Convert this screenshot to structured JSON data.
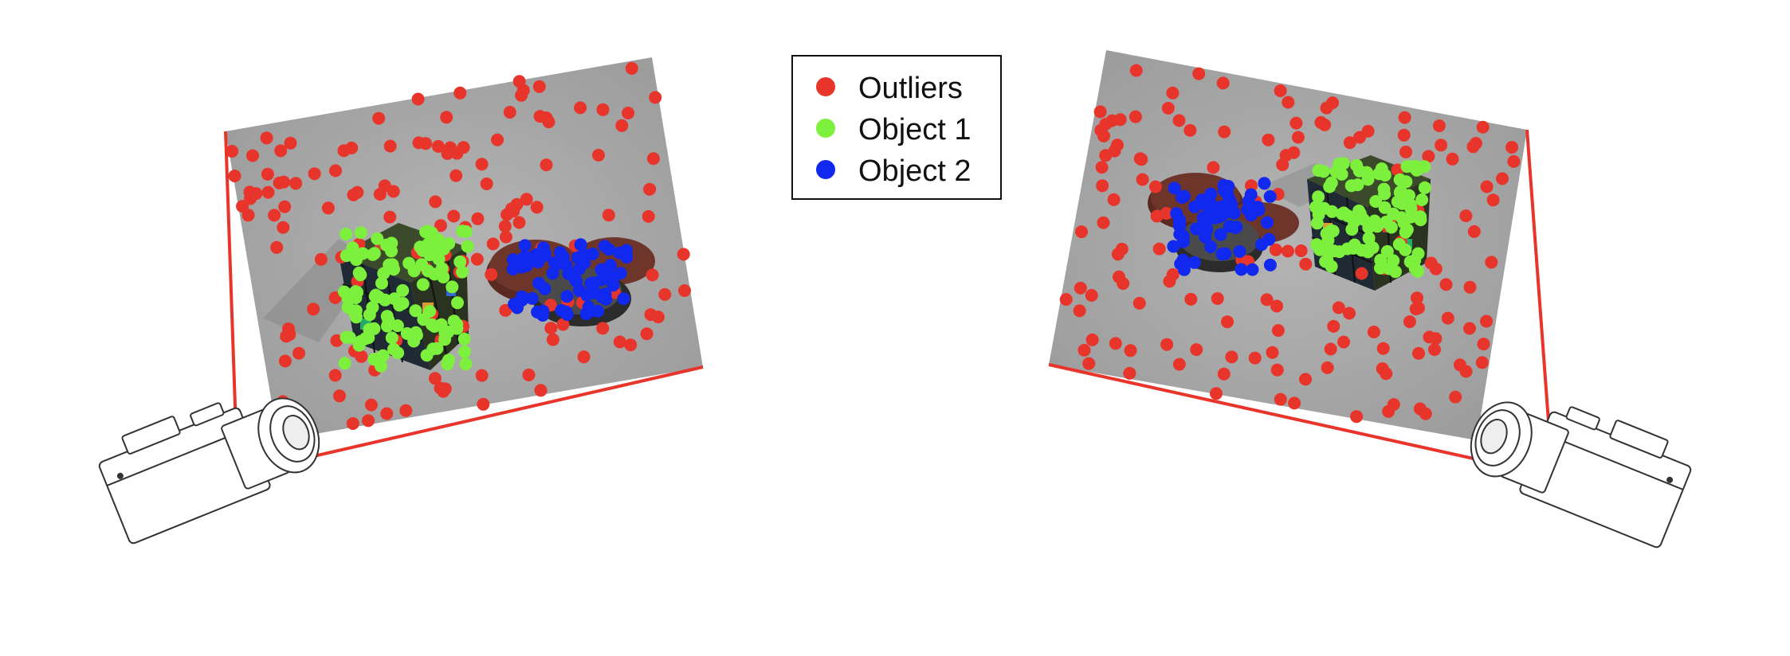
{
  "legend": {
    "items": [
      {
        "label": "Outliers",
        "color": "#e8352b"
      },
      {
        "label": "Object 1",
        "color": "#7cf03c"
      },
      {
        "label": "Object 2",
        "color": "#1128ee"
      }
    ]
  },
  "colors": {
    "outlier": "#e8352b",
    "object1": "#7cf03c",
    "object2": "#1128ee",
    "frustum": "#e8352b",
    "photo_bg": "#a9a9a9"
  },
  "views": [
    {
      "camera_icon": "camera-icon",
      "side": "left"
    },
    {
      "camera_icon": "camera-icon",
      "side": "right"
    }
  ]
}
